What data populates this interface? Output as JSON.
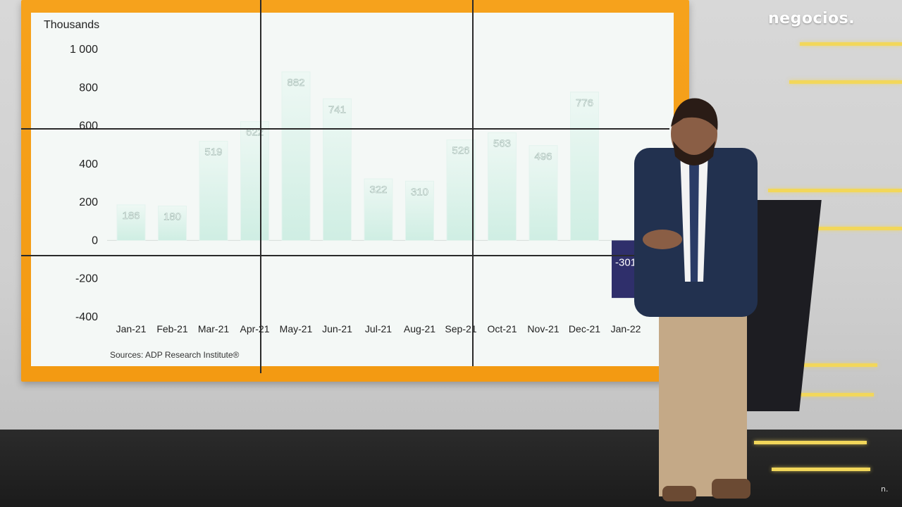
{
  "broadcast": {
    "brand_label": "negocios.",
    "corner_label": "n.",
    "colors": {
      "frame": "#f39a12",
      "panel": "#f4f8f6",
      "bar_fill": "#cfeee3",
      "negative_bar_fill": "#2f2f6b",
      "light_strip": "#f2d75a"
    }
  },
  "chart_data": {
    "type": "bar",
    "unit_label": "Thousands",
    "source": "Sources: ADP Research Institute®",
    "categories": [
      "Jan-21",
      "Feb-21",
      "Mar-21",
      "Apr-21",
      "May-21",
      "Jun-21",
      "Jul-21",
      "Aug-21",
      "Sep-21",
      "Oct-21",
      "Nov-21",
      "Dec-21",
      "Jan-22"
    ],
    "values": [
      186,
      180,
      519,
      622,
      882,
      741,
      322,
      310,
      526,
      563,
      496,
      776,
      -301
    ],
    "value_labels": [
      "186",
      "180",
      "519",
      "622",
      "882",
      "741",
      "322",
      "310",
      "526",
      "563",
      "496",
      "776",
      "-301"
    ],
    "ylim": [
      -400,
      1000
    ],
    "yticks": [
      1000,
      800,
      600,
      400,
      200,
      0,
      -200,
      -400
    ],
    "ytick_labels": [
      "1 000",
      "800",
      "600",
      "400",
      "200",
      "0",
      "-200",
      "-400"
    ],
    "grid": false,
    "legend": "none"
  }
}
